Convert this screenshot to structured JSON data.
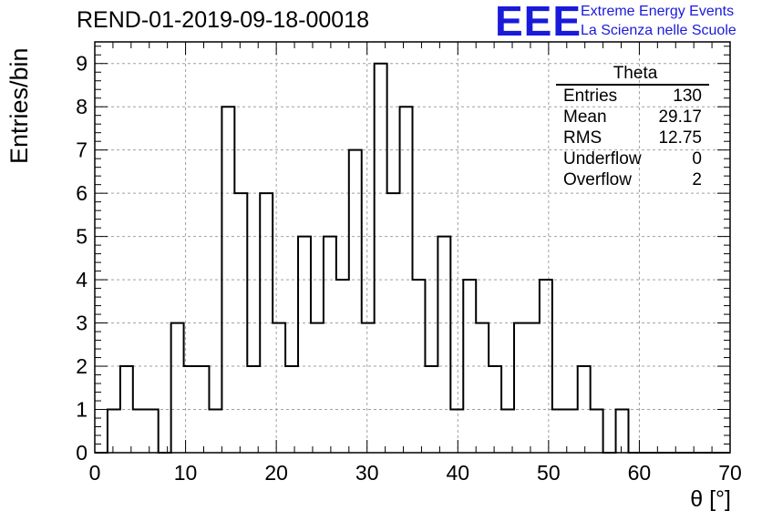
{
  "chart_data": {
    "type": "bar",
    "title": "REND-01-2019-09-18-00018",
    "xlabel": "θ [°]",
    "ylabel": "Entries/bin",
    "xlim": [
      0,
      70
    ],
    "ylim": [
      0,
      9.5
    ],
    "bin_width": 1.4,
    "grid": true,
    "xticks": [
      0,
      10,
      20,
      30,
      40,
      50,
      60,
      70
    ],
    "yticks": [
      0,
      1,
      2,
      3,
      4,
      5,
      6,
      7,
      8,
      9
    ],
    "values": [
      0,
      1,
      2,
      1,
      1,
      0,
      3,
      2,
      2,
      1,
      8,
      6,
      2,
      6,
      3,
      2,
      5,
      3,
      5,
      4,
      7,
      3,
      9,
      6,
      8,
      4,
      2,
      5,
      1,
      4,
      3,
      2,
      1,
      3,
      3,
      4,
      1,
      1,
      2,
      1,
      0,
      1,
      0,
      0,
      0,
      0,
      0,
      0,
      0,
      0
    ],
    "stats": {
      "name": "Theta",
      "rows": [
        {
          "label": "Entries",
          "value": "130"
        },
        {
          "label": "Mean",
          "value": "29.17"
        },
        {
          "label": "RMS",
          "value": "12.75"
        },
        {
          "label": "Underflow",
          "value": "0"
        },
        {
          "label": "Overflow",
          "value": "2"
        }
      ]
    }
  },
  "logo": {
    "mark": "EEE",
    "line1": "Extreme Energy Events",
    "line2": "La Scienza nelle Scuole"
  },
  "colors": {
    "logo": "#1a1adb",
    "line": "#000000",
    "grid": "#a0a0a0"
  }
}
